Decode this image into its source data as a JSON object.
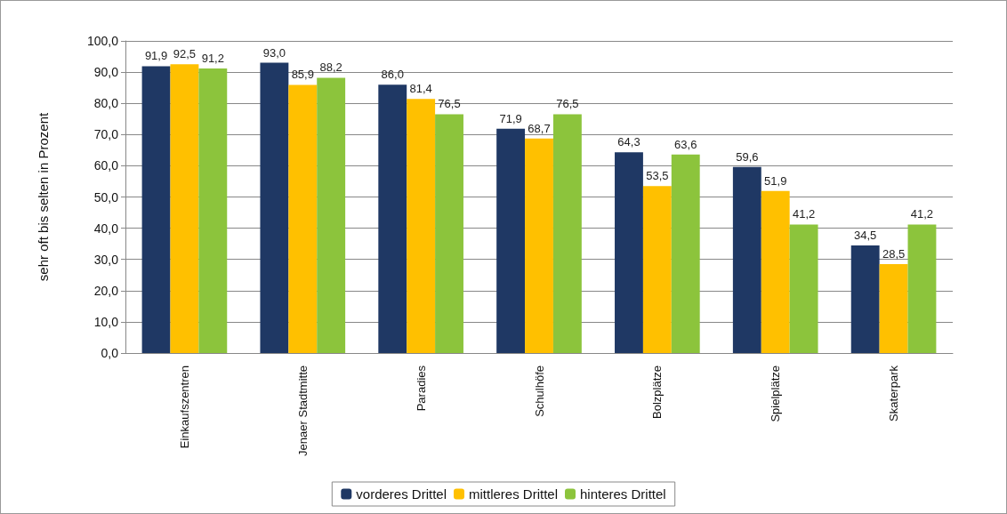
{
  "chart_data": {
    "type": "bar",
    "ylabel": "sehr oft bis selten in Prozent",
    "categories": [
      "Einkaufszentren",
      "Jenaer Stadtmitte",
      "Paradies",
      "Schulhöfe",
      "Bolzplätze",
      "Spielplätze",
      "Skaterpark"
    ],
    "series": [
      {
        "name": "vorderes Drittel",
        "color": "#1f3864",
        "values": [
          91.9,
          93.0,
          86.0,
          71.9,
          64.3,
          59.6,
          34.5
        ],
        "value_labels": [
          "91,9",
          "93,0",
          "86,0",
          "71,9",
          "64,3",
          "59,6",
          "34,5"
        ]
      },
      {
        "name": "mittleres Drittel",
        "color": "#ffc000",
        "values": [
          92.5,
          85.9,
          81.4,
          68.7,
          53.5,
          51.9,
          28.5
        ],
        "value_labels": [
          "92,5",
          "85,9",
          "81,4",
          "68,7",
          "53,5",
          "51,9",
          "28,5"
        ]
      },
      {
        "name": "hinteres Drittel",
        "color": "#8cc43c",
        "values": [
          91.2,
          88.2,
          76.5,
          76.5,
          63.6,
          41.2,
          41.2
        ],
        "value_labels": [
          "91,2",
          "88,2",
          "76,5",
          "76,5",
          "63,6",
          "41,2",
          "41,2"
        ]
      }
    ],
    "ylim": [
      0,
      100
    ],
    "yticks": [
      {
        "value": 0,
        "label": "0,0"
      },
      {
        "value": 10,
        "label": "10,0"
      },
      {
        "value": 20,
        "label": "20,0"
      },
      {
        "value": 30,
        "label": "30,0"
      },
      {
        "value": 40,
        "label": "40,0"
      },
      {
        "value": 50,
        "label": "50,0"
      },
      {
        "value": 60,
        "label": "60,0"
      },
      {
        "value": 70,
        "label": "70,0"
      },
      {
        "value": 80,
        "label": "80,0"
      },
      {
        "value": 90,
        "label": "90,0"
      },
      {
        "value": 100,
        "label": "100,0"
      }
    ],
    "grid": "y",
    "legend": "bottom"
  }
}
